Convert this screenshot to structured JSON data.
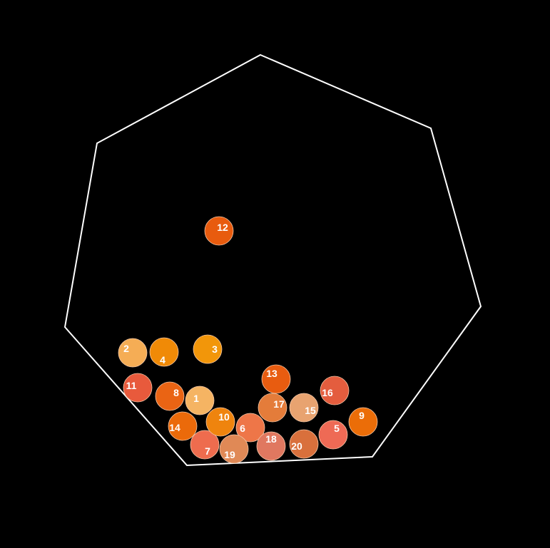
{
  "colors": {
    "background": "#000000",
    "container_stroke": "#ffffff",
    "ball_stroke": "#f2c7a8"
  },
  "balls": [
    {
      "label": "1",
      "color": "#f5b463"
    },
    {
      "label": "2",
      "color": "#f5ad55"
    },
    {
      "label": "3",
      "color": "#f2960a"
    },
    {
      "label": "4",
      "color": "#f08a07"
    },
    {
      "label": "5",
      "color": "#ee6a55"
    },
    {
      "label": "6",
      "color": "#ee7648"
    },
    {
      "label": "7",
      "color": "#ee6c4e"
    },
    {
      "label": "8",
      "color": "#ea6414"
    },
    {
      "label": "9",
      "color": "#eb6d08"
    },
    {
      "label": "10",
      "color": "#ef840e"
    },
    {
      "label": "11",
      "color": "#e85a3c"
    },
    {
      "label": "12",
      "color": "#e85b0e"
    },
    {
      "label": "13",
      "color": "#e85c10"
    },
    {
      "label": "14",
      "color": "#eb6a0a"
    },
    {
      "label": "15",
      "color": "#e8a370"
    },
    {
      "label": "16",
      "color": "#e45d3e"
    },
    {
      "label": "17",
      "color": "#e47c3a"
    },
    {
      "label": "18",
      "color": "#e07860"
    },
    {
      "label": "19",
      "color": "#e08956"
    },
    {
      "label": "20",
      "color": "#d9703c"
    }
  ]
}
